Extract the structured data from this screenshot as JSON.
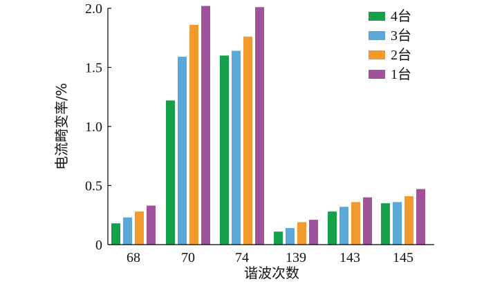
{
  "chart_data": {
    "type": "bar",
    "categories": [
      "68",
      "70",
      "74",
      "139",
      "143",
      "145"
    ],
    "series": [
      {
        "name": "4台",
        "color": "#15a04a",
        "values": [
          0.18,
          1.22,
          1.6,
          0.11,
          0.28,
          0.35
        ]
      },
      {
        "name": "3台",
        "color": "#5aa8d8",
        "values": [
          0.23,
          1.59,
          1.64,
          0.14,
          0.32,
          0.36
        ]
      },
      {
        "name": "2台",
        "color": "#f39a2e",
        "values": [
          0.28,
          1.86,
          1.76,
          0.19,
          0.36,
          0.41
        ]
      },
      {
        "name": "1台",
        "color": "#a0529b",
        "values": [
          0.33,
          2.02,
          2.01,
          0.21,
          0.4,
          0.47
        ]
      }
    ],
    "xlabel": "谐波次数",
    "ylabel": "电流畸变率/%",
    "ylim": [
      0,
      2.0
    ],
    "yticks": [
      "0",
      "0.5",
      "1.0",
      "1.5",
      "2.0"
    ],
    "legend_position": "top-right",
    "grid": false
  }
}
